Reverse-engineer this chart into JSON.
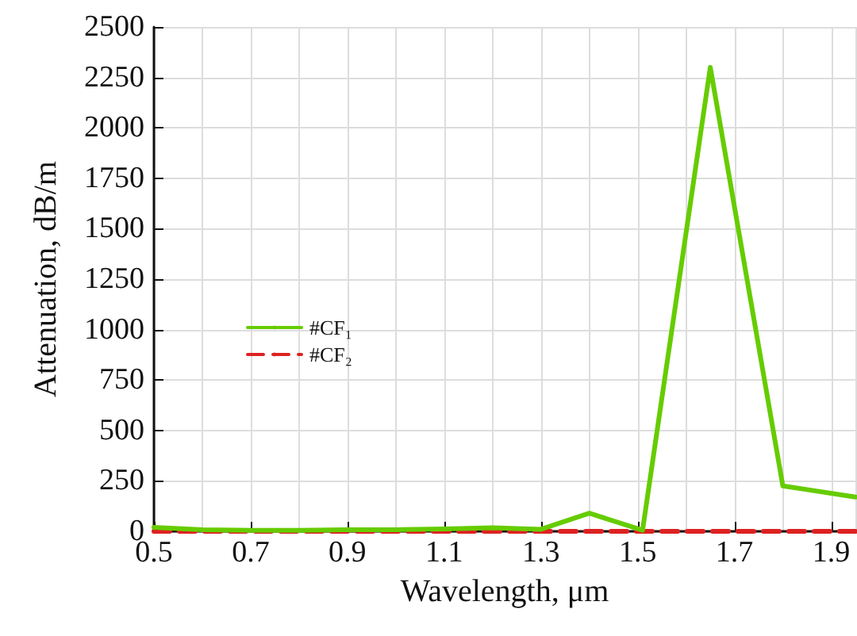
{
  "chart_data": {
    "type": "line",
    "xlabel": "Wavelength, μm",
    "ylabel": "Attenuation, dB/m",
    "x": [
      0.5,
      0.6,
      0.7,
      0.8,
      0.9,
      1.0,
      1.1,
      1.2,
      1.3,
      1.4,
      1.51,
      1.65,
      1.8,
      1.95
    ],
    "series": [
      {
        "name": "#CF₁",
        "color": "#66cc00",
        "line_style": "solid",
        "values": [
          20,
          8,
          5,
          5,
          8,
          8,
          12,
          18,
          10,
          90,
          5,
          2300,
          225,
          170
        ]
      },
      {
        "name": "#CF₂",
        "color": "#dd2222",
        "line_style": "dashed",
        "values": [
          0,
          0,
          0,
          0,
          0,
          0,
          0,
          0,
          0,
          0,
          0,
          0,
          0,
          0
        ]
      }
    ],
    "xlim": [
      0.5,
      1.95
    ],
    "xticks": [
      0.5,
      0.7,
      0.9,
      1.1,
      1.3,
      1.5,
      1.7,
      1.9
    ],
    "ylim": [
      0,
      2500
    ],
    "yticks": [
      0,
      250,
      500,
      750,
      1000,
      1250,
      1500,
      1750,
      2000,
      2250,
      2500
    ],
    "grid": true,
    "legend": "left",
    "marker": "none"
  }
}
